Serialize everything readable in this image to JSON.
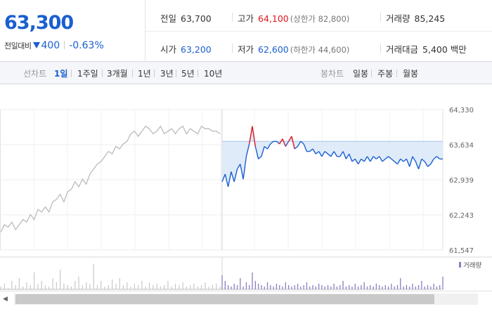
{
  "header": {
    "price": "63,300",
    "change_label": "전일대비",
    "change_amount": "400",
    "change_percent": "-0.63%",
    "direction": "down",
    "colors": {
      "down": "#1a5fd0",
      "up": "#e0141e",
      "neutral": "#333333"
    },
    "stats": {
      "prev_close": {
        "label": "전일",
        "value": "63,700"
      },
      "high": {
        "label": "고가",
        "value": "64,100",
        "sub": "(상한가 82,800)"
      },
      "volume": {
        "label": "거래량",
        "value": "85,245"
      },
      "open": {
        "label": "시가",
        "value": "63,200"
      },
      "low": {
        "label": "저가",
        "value": "62,600",
        "sub": "(하한가 44,600)"
      },
      "amount": {
        "label": "거래대금",
        "value": "5,400 백만"
      }
    }
  },
  "toolbar": {
    "line_label": "선차트",
    "line_periods": [
      "1일",
      "1주일",
      "3개월",
      "1년",
      "3년",
      "5년",
      "10년"
    ],
    "active_period": "1일",
    "candle_label": "봉차트",
    "candle_periods": [
      "일봉",
      "주봉",
      "월봉"
    ]
  },
  "scrollbar": {
    "left_arrow_icon": "arrow-left-icon"
  },
  "chart_data": {
    "type": "line",
    "title": "",
    "xlabel": "",
    "ylabel": "",
    "y_ticks": [
      "64,330",
      "63,634",
      "62,939",
      "62,243",
      "61,547"
    ],
    "ylim": [
      61547,
      64330
    ],
    "grid": true,
    "prev_day_color": "#bbbbbb",
    "today_color": "#1a5fd0",
    "above_prev_close_color": "#e0141e",
    "prev_close_ref": 63700,
    "volume_legend": "거래량",
    "volume_color": "#8e7cc3",
    "series": [
      {
        "name": "",
        "style": "prev_day",
        "values": [
          61900,
          62050,
          62000,
          62100,
          61950,
          62050,
          62150,
          62100,
          62250,
          62150,
          62350,
          62300,
          62400,
          62300,
          62500,
          62550,
          62650,
          62500,
          62700,
          62750,
          62900,
          62800,
          62950,
          62850,
          63050,
          63150,
          63250,
          63300,
          63400,
          63500,
          63450,
          63600,
          63550,
          63650,
          63700,
          63850,
          63900,
          63800,
          63900,
          64000,
          63950,
          63850,
          63900,
          64000,
          63850,
          63900,
          63950,
          63850,
          63950,
          64000,
          63850,
          63950,
          63900,
          63850,
          64000,
          63950,
          63950,
          63900,
          63900,
          63850
        ]
      },
      {
        "name": "",
        "style": "today",
        "values": [
          62900,
          63050,
          62800,
          63100,
          62900,
          63150,
          63250,
          62950,
          63400,
          63650,
          64000,
          63600,
          63350,
          63400,
          63600,
          63550,
          63650,
          63700,
          63700,
          63650,
          63750,
          63600,
          63700,
          63800,
          63550,
          63600,
          63700,
          63650,
          63500,
          63500,
          63550,
          63450,
          63500,
          63400,
          63500,
          63450,
          63400,
          63500,
          63400,
          63400,
          63500,
          63350,
          63450,
          63300,
          63350,
          63250,
          63350,
          63300,
          63400,
          63300,
          63400,
          63350,
          63400,
          63300,
          63350,
          63400,
          63350,
          63300,
          63250,
          63350,
          63300,
          63350,
          63200,
          63400,
          63300,
          63150,
          63350,
          63300,
          63200,
          63250,
          63350,
          63400,
          63350,
          63350
        ]
      }
    ],
    "volume": [
      {
        "name": "",
        "style": "prev_day",
        "values": [
          2,
          4,
          1,
          6,
          3,
          8,
          2,
          5,
          3,
          12,
          4,
          6,
          3,
          2,
          8,
          5,
          14,
          4,
          3,
          2,
          6,
          9,
          3,
          5,
          4,
          18,
          3,
          6,
          2,
          3,
          7,
          4,
          8,
          3,
          5,
          2,
          4,
          3,
          6,
          2,
          5,
          3,
          4,
          2,
          3,
          6,
          2,
          4,
          3,
          5,
          2,
          3,
          4,
          2,
          3,
          5,
          2,
          3,
          4,
          2
        ]
      },
      {
        "name": "",
        "style": "today",
        "values": [
          10,
          6,
          3,
          2,
          4,
          3,
          8,
          2,
          5,
          3,
          12,
          6,
          4,
          3,
          2,
          5,
          3,
          2,
          4,
          3,
          2,
          5,
          3,
          2,
          3,
          4,
          2,
          3,
          5,
          2,
          3,
          2,
          4,
          3,
          2,
          3,
          2,
          4,
          2,
          3,
          6,
          2,
          3,
          2,
          4,
          2,
          3,
          5,
          2,
          3,
          2,
          4,
          3,
          2,
          3,
          2,
          4,
          2,
          3,
          8,
          2,
          3,
          2,
          4,
          2,
          3,
          6,
          2,
          3,
          2,
          4,
          2,
          3,
          9
        ]
      }
    ]
  }
}
